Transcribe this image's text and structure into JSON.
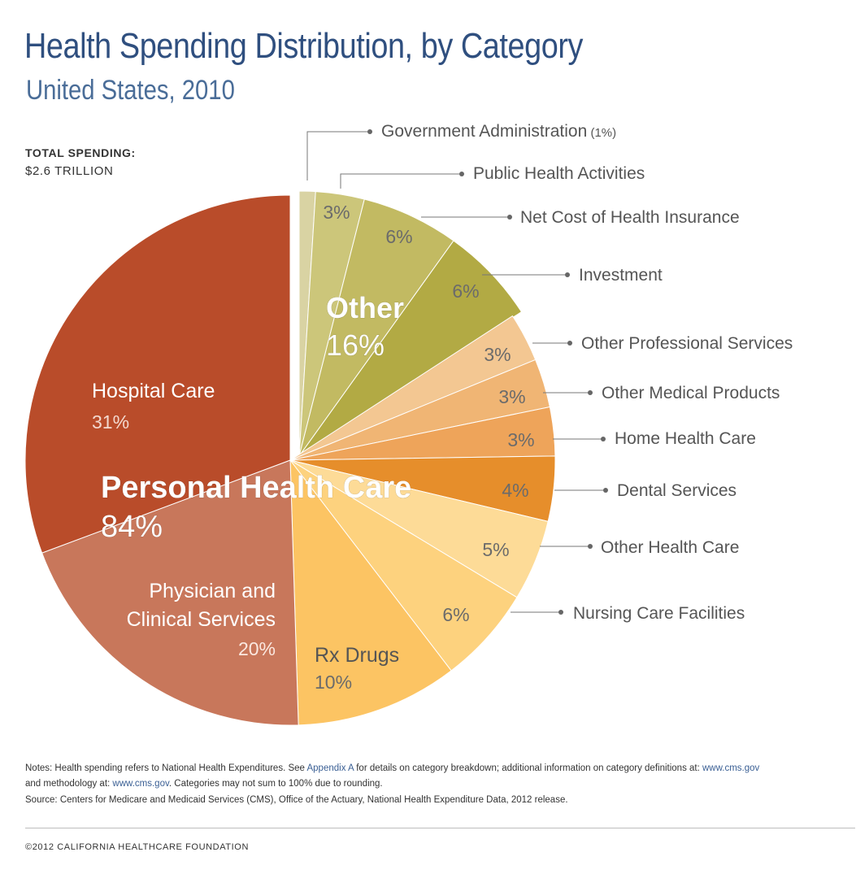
{
  "header": {
    "title": "Health Spending Distribution, by Category",
    "subtitle": "United States, 2010"
  },
  "total": {
    "label": "TOTAL SPENDING:",
    "value": "$2.6 TRILLION"
  },
  "chart_data": {
    "type": "pie",
    "title": "Health Spending Distribution, by Category",
    "subtitle": "United States, 2010",
    "groups": [
      {
        "name": "Other",
        "value_label": "16%",
        "value": 16,
        "exploded": true
      },
      {
        "name": "Personal Health Care",
        "value_label": "84%",
        "value": 84,
        "exploded": false
      }
    ],
    "slices": [
      {
        "name": "Government Administration",
        "value": 1,
        "value_label": "",
        "note": "(1%)",
        "group": "Other",
        "color": "#d9d3a3",
        "label_position": "leader"
      },
      {
        "name": "Public Health Activities",
        "value": 3,
        "value_label": "3%",
        "note": "",
        "group": "Other",
        "color": "#ccc67a",
        "label_position": "leader"
      },
      {
        "name": "Net Cost of Health Insurance",
        "value": 6,
        "value_label": "6%",
        "note": "",
        "group": "Other",
        "color": "#c2ba62",
        "label_position": "leader"
      },
      {
        "name": "Investment",
        "value": 6,
        "value_label": "6%",
        "note": "",
        "group": "Other",
        "color": "#b2aa44",
        "label_position": "leader"
      },
      {
        "name": "Other Professional Services",
        "value": 3,
        "value_label": "3%",
        "note": "",
        "group": "Personal Health Care",
        "color": "#f3c792",
        "label_position": "leader"
      },
      {
        "name": "Other Medical Products",
        "value": 3,
        "value_label": "3%",
        "note": "",
        "group": "Personal Health Care",
        "color": "#f0b574",
        "label_position": "leader"
      },
      {
        "name": "Home Health Care",
        "value": 3,
        "value_label": "3%",
        "note": "",
        "group": "Personal Health Care",
        "color": "#eea45a",
        "label_position": "leader"
      },
      {
        "name": "Dental Services",
        "value": 4,
        "value_label": "4%",
        "note": "",
        "group": "Personal Health Care",
        "color": "#e68e2b",
        "label_position": "leader"
      },
      {
        "name": "Other Health Care",
        "value": 5,
        "value_label": "5%",
        "note": "",
        "group": "Personal Health Care",
        "color": "#fddb97",
        "label_position": "leader"
      },
      {
        "name": "Nursing Care Facilities",
        "value": 6,
        "value_label": "6%",
        "note": "",
        "group": "Personal Health Care",
        "color": "#fdd27e",
        "label_position": "leader"
      },
      {
        "name": "Rx Drugs",
        "value": 10,
        "value_label": "10%",
        "note": "",
        "group": "Personal Health Care",
        "color": "#fcc463",
        "label_position": "inside"
      },
      {
        "name": "Physician and Clinical Services",
        "value": 20,
        "value_label": "20%",
        "note": "",
        "group": "Personal Health Care",
        "color": "#c8775b",
        "label_position": "inside"
      },
      {
        "name": "Hospital Care",
        "value": 31,
        "value_label": "31%",
        "note": "",
        "group": "Personal Health Care",
        "color": "#b94c2a",
        "label_position": "inside"
      }
    ]
  },
  "notes": {
    "part1": "Notes: Health spending refers to National Health Expenditures. See ",
    "link1": "Appendix A",
    "part2": " for details on category breakdown; additional information on category definitions at: ",
    "link2": "www.cms.gov",
    "part3": " and methodology at: ",
    "link3": "www.cms.gov",
    "part4": ". Categories may not sum to 100% due to rounding."
  },
  "source": "Source: Centers for Medicare and Medicaid Services (CMS), Office of the Actuary, National Health Expenditure Data, 2012 release.",
  "copyright": "©2012 CALIFORNIA HEALTHCARE FOUNDATION"
}
